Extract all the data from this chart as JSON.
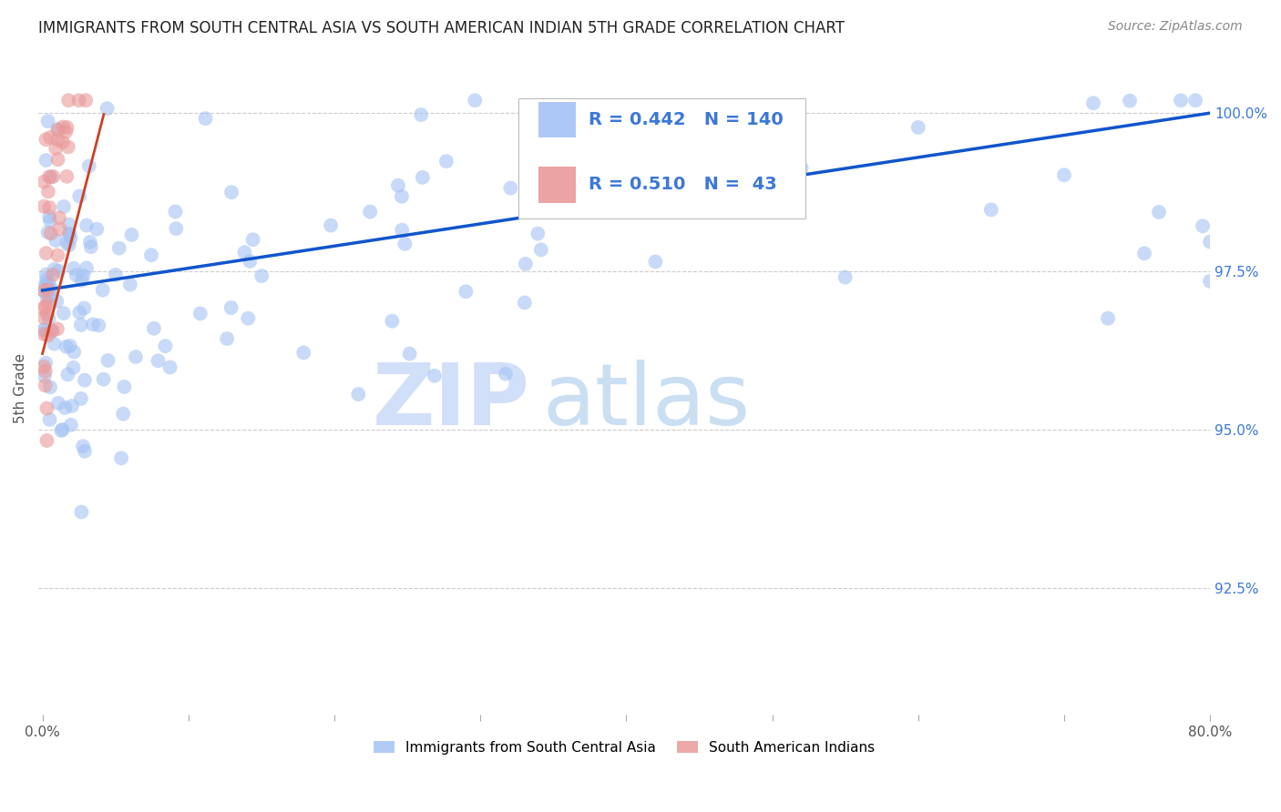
{
  "title": "IMMIGRANTS FROM SOUTH CENTRAL ASIA VS SOUTH AMERICAN INDIAN 5TH GRADE CORRELATION CHART",
  "source": "Source: ZipAtlas.com",
  "ylabel": "5th Grade",
  "series1_label": "Immigrants from South Central Asia",
  "series2_label": "South American Indians",
  "series1_color": "#a4c2f4",
  "series2_color": "#ea9999",
  "series1_line_color": "#1155cc",
  "series2_line_color": "#cc4125",
  "R1": 0.442,
  "N1": 140,
  "R2": 0.51,
  "N2": 43,
  "xlim_min": 0.0,
  "xlim_max": 0.8,
  "ylim_min": 0.905,
  "ylim_max": 1.008,
  "ytick_positions": [
    0.925,
    0.95,
    0.975,
    1.0
  ],
  "yticklabels": [
    "92.5%",
    "95.0%",
    "97.5%",
    "100.0%"
  ],
  "grid_color": "#cccccc",
  "background_color": "#ffffff",
  "watermark_zip": "ZIP",
  "watermark_atlas": "atlas",
  "title_fontsize": 12,
  "tick_fontsize": 11,
  "source_fontsize": 10
}
